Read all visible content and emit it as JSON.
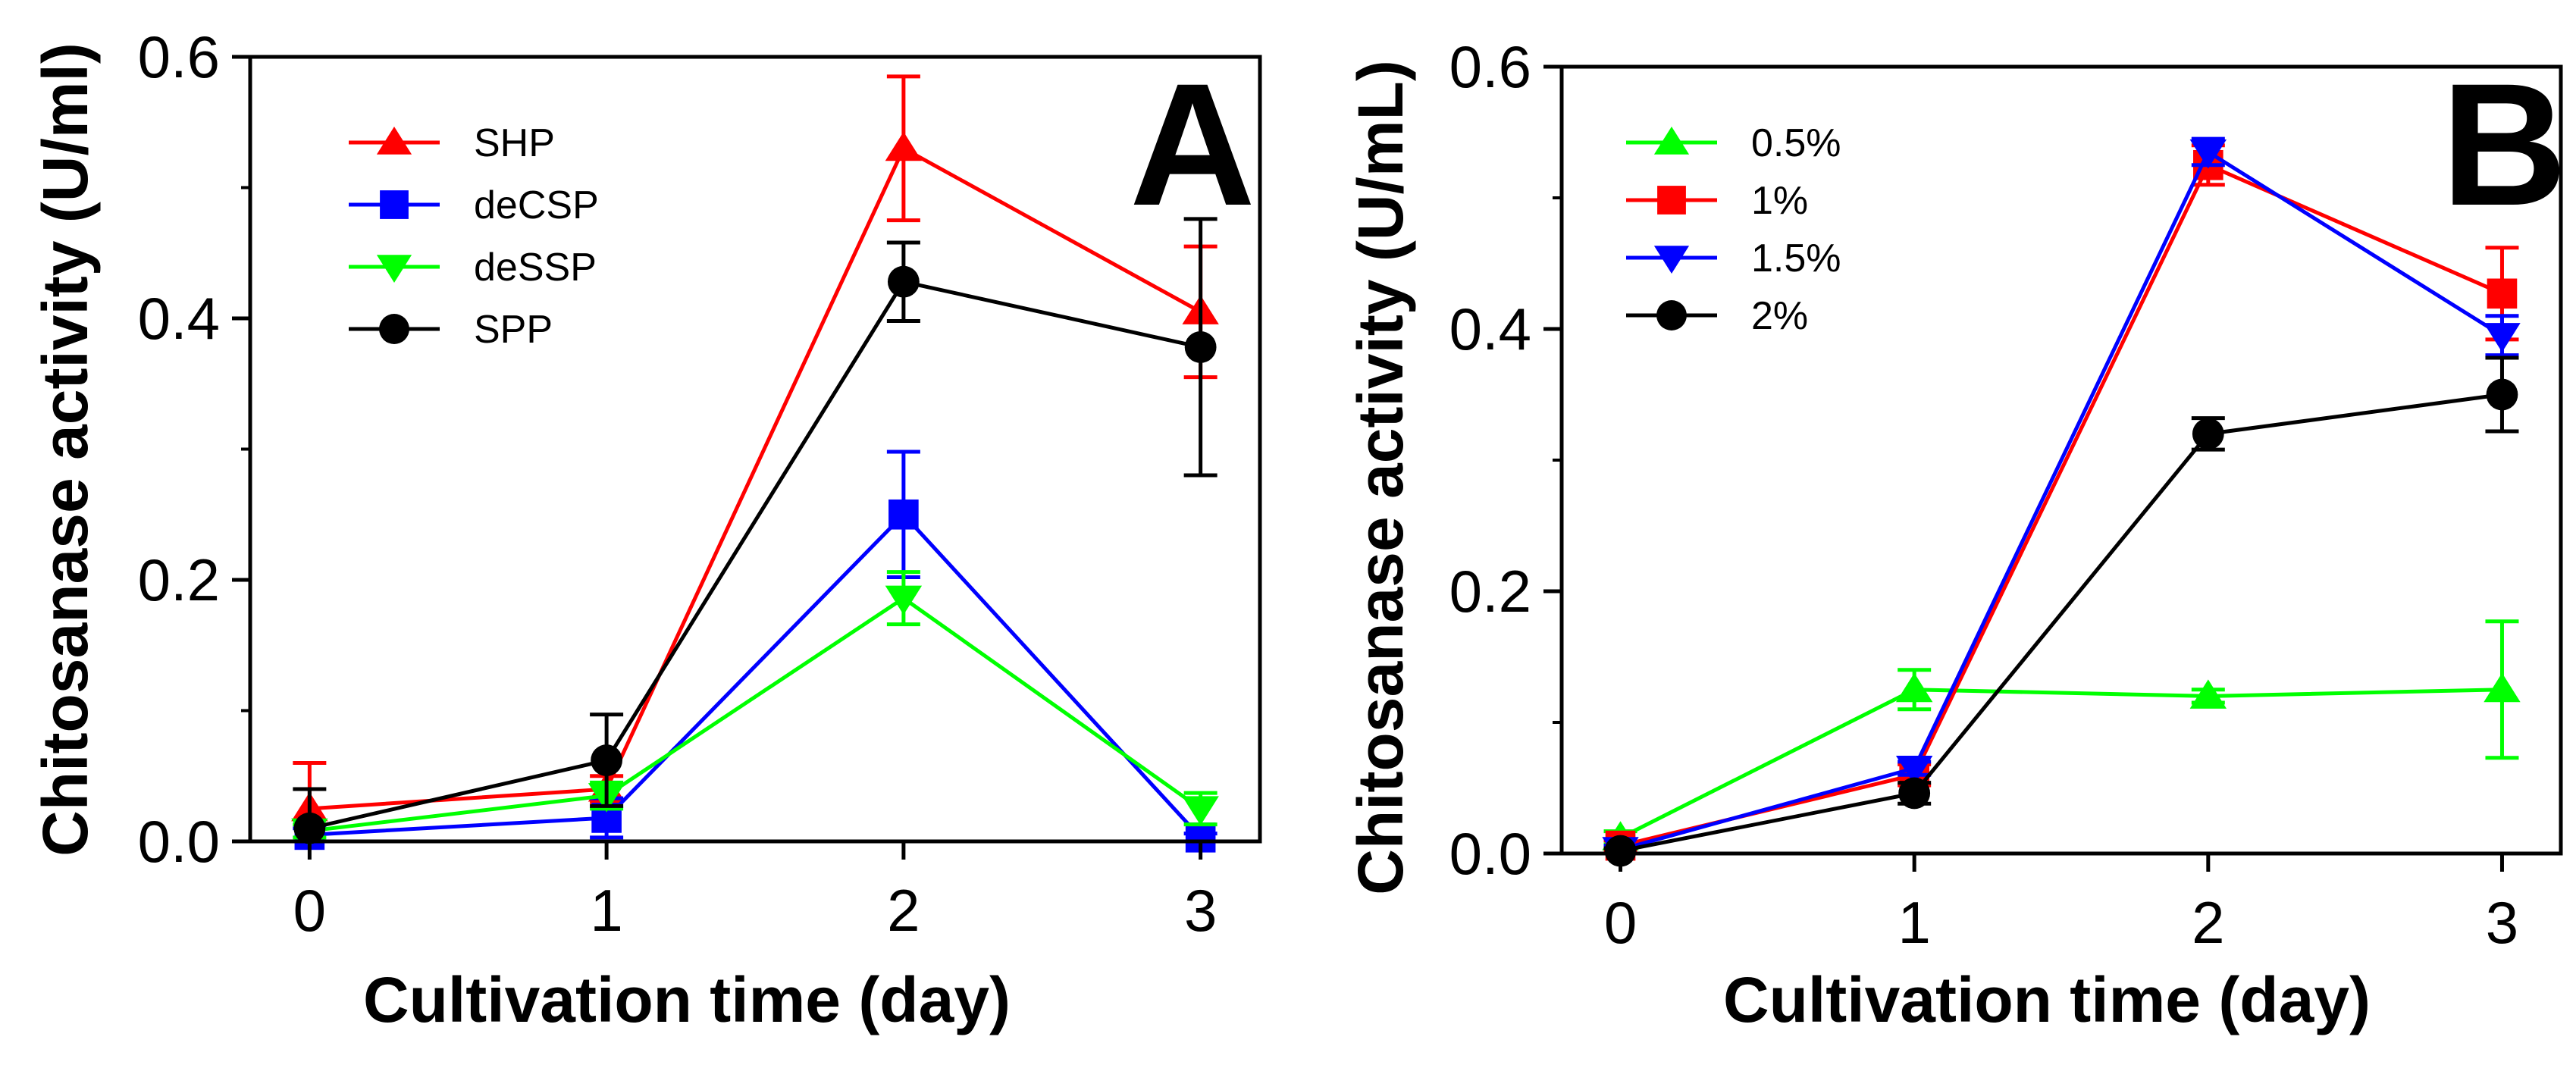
{
  "chart_data": [
    {
      "type": "line",
      "panel_label": "A",
      "xlabel": "Cultivation time (day)",
      "ylabel": "Chitosanase activity (U/ml)",
      "xlim": [
        -0.2,
        3.2
      ],
      "ylim": [
        0.0,
        0.6
      ],
      "x_ticks": [
        "0",
        "1",
        "2",
        "3"
      ],
      "y_ticks": [
        "0.0",
        "0.2",
        "0.4",
        "0.6"
      ],
      "legend_position": "top-left",
      "series": [
        {
          "name": "SHP",
          "color": "#ff0000",
          "marker": "triangle-up",
          "x": [
            0,
            1,
            2,
            3
          ],
          "y": [
            0.025,
            0.04,
            0.53,
            0.405
          ],
          "err": [
            0.035,
            0.01,
            0.055,
            0.05
          ]
        },
        {
          "name": "deCSP",
          "color": "#0000ff",
          "marker": "square",
          "x": [
            0,
            1,
            2,
            3
          ],
          "y": [
            0.005,
            0.018,
            0.25,
            0.003
          ],
          "err": [
            0.005,
            0.015,
            0.048,
            0.003
          ]
        },
        {
          "name": "deSSP",
          "color": "#00ff00",
          "marker": "triangle-down",
          "x": [
            0,
            1,
            2,
            3
          ],
          "y": [
            0.008,
            0.035,
            0.186,
            0.025
          ],
          "err": [
            0.005,
            0.01,
            0.02,
            0.012
          ]
        },
        {
          "name": "SPP",
          "color": "#000000",
          "marker": "circle",
          "x": [
            0,
            1,
            2,
            3
          ],
          "y": [
            0.01,
            0.062,
            0.428,
            0.378
          ],
          "err": [
            0.03,
            0.035,
            0.03,
            0.098
          ]
        }
      ]
    },
    {
      "type": "line",
      "panel_label": "B",
      "xlabel": "Cultivation time (day)",
      "ylabel": "Chitosanase activity (U/mL)",
      "xlim": [
        -0.2,
        3.2
      ],
      "ylim": [
        0.0,
        0.6
      ],
      "x_ticks": [
        "0",
        "1",
        "2",
        "3"
      ],
      "y_ticks": [
        "0.0",
        "0.2",
        "0.4",
        "0.6"
      ],
      "legend_position": "top-left",
      "series": [
        {
          "name": "0.5%",
          "color": "#00ff00",
          "marker": "triangle-up",
          "x": [
            0,
            1,
            2,
            3
          ],
          "y": [
            0.012,
            0.125,
            0.12,
            0.125
          ],
          "err": [
            0.005,
            0.015,
            0.005,
            0.052
          ]
        },
        {
          "name": "1%",
          "color": "#ff0000",
          "marker": "square",
          "x": [
            0,
            1,
            2,
            3
          ],
          "y": [
            0.006,
            0.06,
            0.525,
            0.427
          ],
          "err": [
            0.004,
            0.008,
            0.015,
            0.035
          ]
        },
        {
          "name": "1.5%",
          "color": "#0000ff",
          "marker": "triangle-down",
          "x": [
            0,
            1,
            2,
            3
          ],
          "y": [
            0.003,
            0.065,
            0.535,
            0.395
          ],
          "err": [
            0.003,
            0.005,
            0.01,
            0.015
          ]
        },
        {
          "name": "2%",
          "color": "#000000",
          "marker": "circle",
          "x": [
            0,
            1,
            2,
            3
          ],
          "y": [
            0.002,
            0.046,
            0.32,
            0.35
          ],
          "err": [
            0.002,
            0.008,
            0.012,
            0.028
          ]
        }
      ]
    }
  ]
}
